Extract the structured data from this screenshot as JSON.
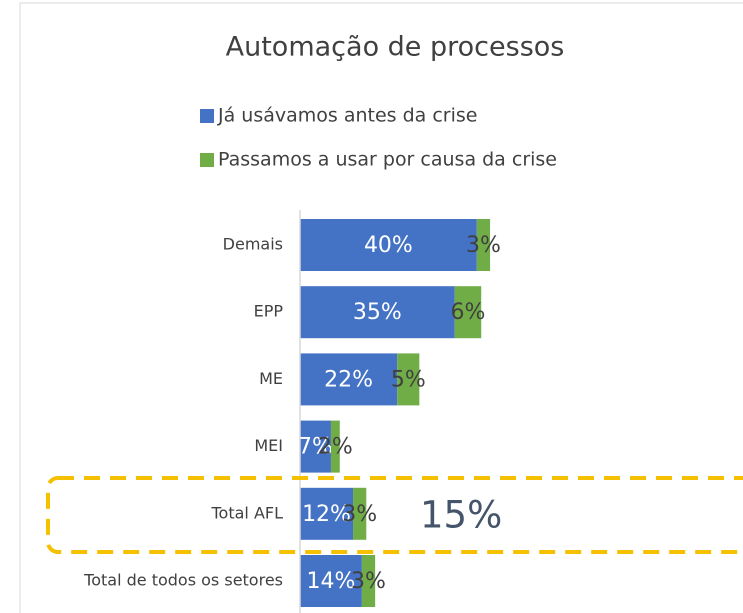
{
  "chart_data": {
    "type": "stacked-bar-horizontal",
    "title": "Automação de processos",
    "categories": [
      "Demais",
      "EPP",
      "ME",
      "MEI",
      "Total AFL",
      "Total de todos os setores"
    ],
    "series": [
      {
        "name": "Já usávamos antes da crise",
        "color": "#4472c4",
        "values": [
          40,
          35,
          22,
          7,
          12,
          14
        ],
        "value_labels": [
          "40%",
          "35%",
          "22%",
          "7%",
          "12%",
          "14%"
        ]
      },
      {
        "name": "Passamos a usar por causa da crise",
        "color": "#70ad47",
        "values": [
          3,
          6,
          5,
          2,
          3,
          3
        ],
        "value_labels": [
          "3%",
          "6%",
          "5%",
          "2%",
          "3%",
          "3%"
        ]
      }
    ],
    "annotation": "15%",
    "highlight_color": "#f5c000"
  }
}
